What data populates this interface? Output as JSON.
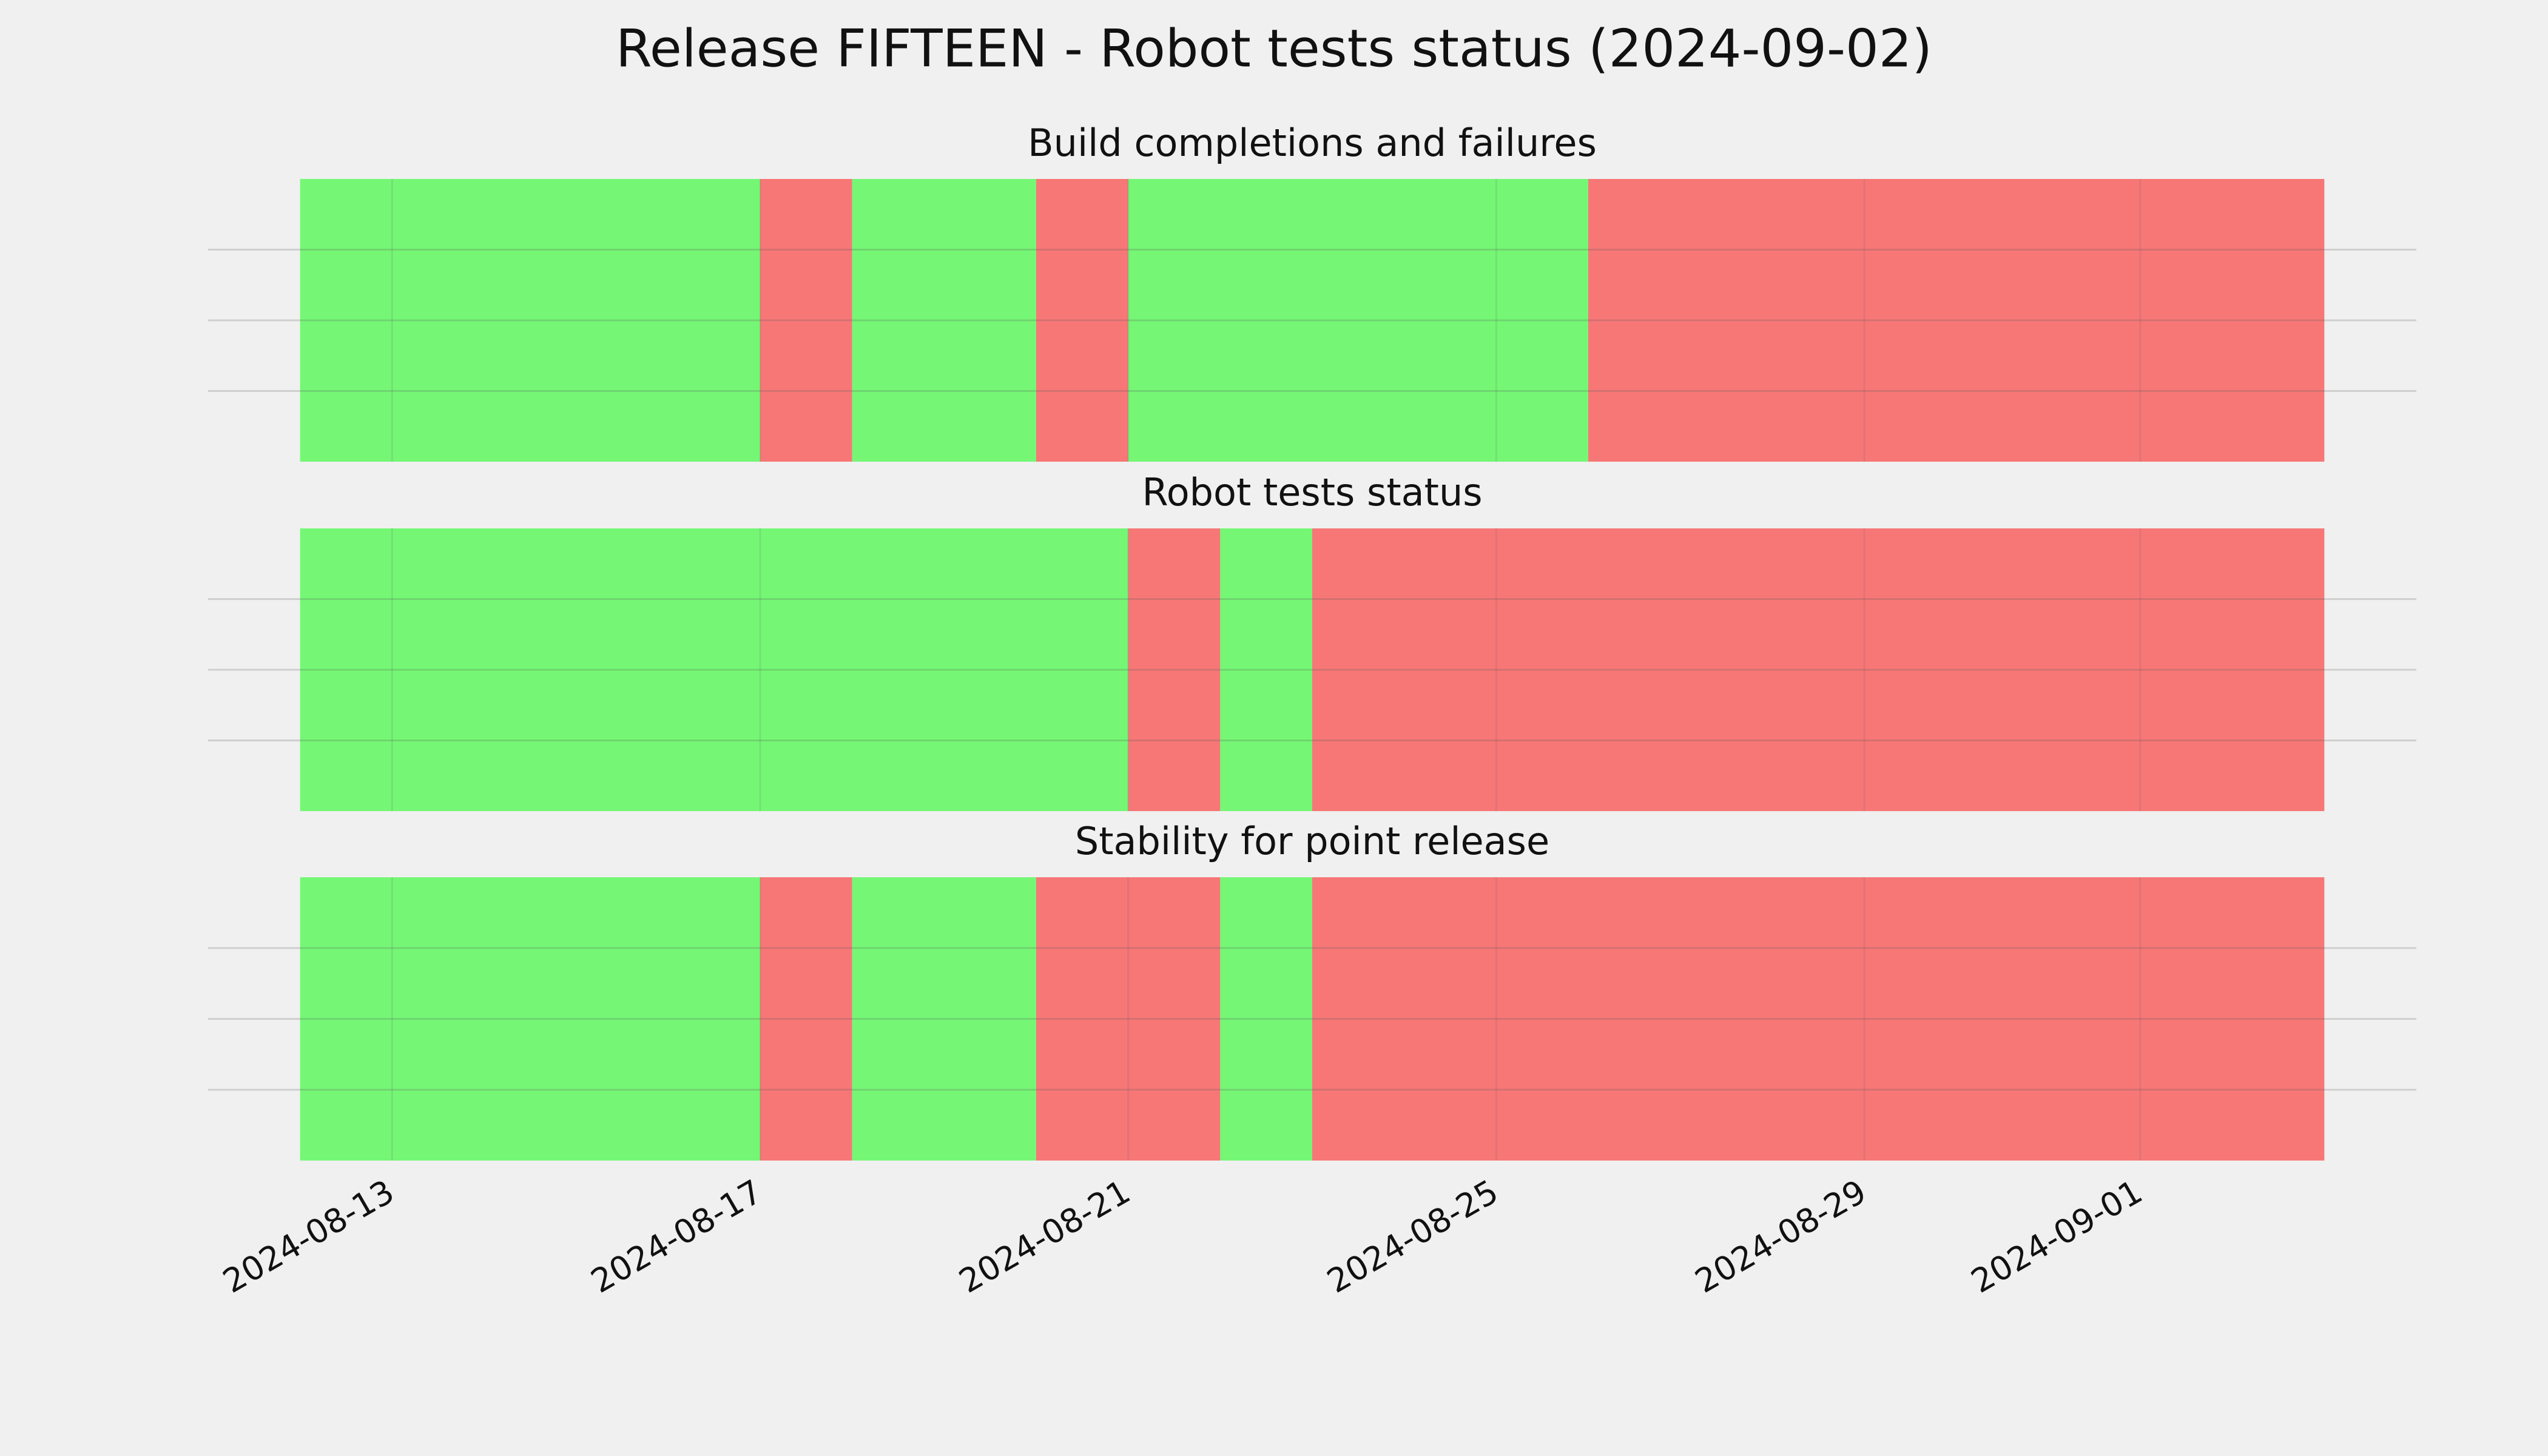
{
  "chart_data": {
    "type": "timeline",
    "title": "Release FIFTEEN - Robot tests status (2024-09-02)",
    "xlim": [
      "2024-08-11",
      "2024-09-04"
    ],
    "xticks": [
      "2024-08-13",
      "2024-08-17",
      "2024-08-21",
      "2024-08-25",
      "2024-08-29",
      "2024-09-01"
    ],
    "ylim": [
      0,
      1
    ],
    "yticks": [
      0.25,
      0.5,
      0.75
    ],
    "grid": true,
    "panels": [
      {
        "title": "Build completions and failures",
        "segments": [
          {
            "start": "2024-08-12",
            "end": "2024-08-17",
            "color": "#75f775"
          },
          {
            "start": "2024-08-17",
            "end": "2024-08-18",
            "color": "#f77777"
          },
          {
            "start": "2024-08-18",
            "end": "2024-08-20",
            "color": "#75f775"
          },
          {
            "start": "2024-08-20",
            "end": "2024-08-21",
            "color": "#f77777"
          },
          {
            "start": "2024-08-21",
            "end": "2024-08-26",
            "color": "#75f775"
          },
          {
            "start": "2024-08-26",
            "end": "2024-09-03",
            "color": "#f77777"
          }
        ]
      },
      {
        "title": "Robot tests status",
        "segments": [
          {
            "start": "2024-08-12",
            "end": "2024-08-21",
            "color": "#75f775"
          },
          {
            "start": "2024-08-21",
            "end": "2024-08-22",
            "color": "#f77777"
          },
          {
            "start": "2024-08-22",
            "end": "2024-08-23",
            "color": "#75f775"
          },
          {
            "start": "2024-08-23",
            "end": "2024-09-03",
            "color": "#f77777"
          }
        ]
      },
      {
        "title": "Stability for point release",
        "segments": [
          {
            "start": "2024-08-12",
            "end": "2024-08-17",
            "color": "#75f775"
          },
          {
            "start": "2024-08-17",
            "end": "2024-08-18",
            "color": "#f77777"
          },
          {
            "start": "2024-08-18",
            "end": "2024-08-20",
            "color": "#75f775"
          },
          {
            "start": "2024-08-20",
            "end": "2024-08-22",
            "color": "#f77777"
          },
          {
            "start": "2024-08-22",
            "end": "2024-08-23",
            "color": "#75f775"
          },
          {
            "start": "2024-08-23",
            "end": "2024-09-03",
            "color": "#f77777"
          }
        ]
      }
    ]
  }
}
